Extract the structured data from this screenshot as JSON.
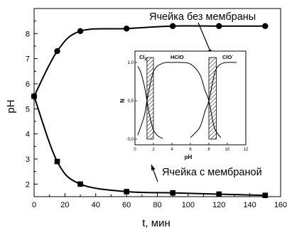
{
  "chart_data": [
    {
      "type": "line",
      "title": "",
      "xlabel": "t, мин",
      "ylabel": "pH",
      "xlim": [
        0,
        160
      ],
      "ylim": [
        1.5,
        9.0
      ],
      "x_ticks": [
        "0",
        "20",
        "40",
        "60",
        "80",
        "100",
        "120",
        "140",
        "160"
      ],
      "y_ticks": [
        "2",
        "3",
        "4",
        "5",
        "6",
        "7",
        "8"
      ],
      "grid": false,
      "series": [
        {
          "name": "Ячейка без мембраны",
          "marker": "circle",
          "x": [
            0,
            15,
            30,
            60,
            90,
            120,
            150
          ],
          "y": [
            5.5,
            7.3,
            8.1,
            8.2,
            8.3,
            8.3,
            8.3
          ]
        },
        {
          "name": "Ячейка с мембраной",
          "marker": "square",
          "x": [
            0,
            15,
            30,
            60,
            90,
            120,
            150
          ],
          "y": [
            5.5,
            2.9,
            2.0,
            1.7,
            1.65,
            1.6,
            1.55
          ]
        }
      ]
    },
    {
      "type": "line",
      "title": "",
      "xlabel": "pH",
      "ylabel": "N",
      "xlim": [
        0,
        12
      ],
      "ylim": [
        0,
        1.0
      ],
      "x_ticks": [
        "0",
        "2",
        "4",
        "6",
        "8",
        "10",
        "12"
      ],
      "y_ticks": [
        "0,0",
        "0,5",
        "1,0"
      ],
      "species_labels": [
        "Cl2",
        "HClO",
        "ClO-"
      ],
      "hatched_ph_ranges": [
        [
          1.3,
          2.0
        ],
        [
          8.0,
          8.8
        ]
      ],
      "series": [
        {
          "name": "Cl2",
          "x": [
            0.3,
            0.6,
            1.0,
            1.3,
            1.6,
            2.0,
            2.5,
            3.0
          ],
          "y": [
            0.95,
            0.88,
            0.7,
            0.5,
            0.3,
            0.12,
            0.04,
            0.01
          ]
        },
        {
          "name": "HClO",
          "x": [
            0.3,
            1.0,
            1.3,
            2.0,
            3.0,
            4.0,
            5.0,
            6.0,
            7.0,
            7.6,
            8.0,
            8.6,
            9.3
          ],
          "y": [
            0.05,
            0.3,
            0.5,
            0.88,
            0.99,
            1.0,
            1.0,
            0.98,
            0.85,
            0.63,
            0.5,
            0.15,
            0.02
          ]
        },
        {
          "name": "ClO-",
          "x": [
            6.0,
            7.0,
            7.6,
            8.0,
            8.6,
            9.0,
            9.5,
            10.0,
            11.0
          ],
          "y": [
            0.02,
            0.15,
            0.37,
            0.5,
            0.85,
            0.95,
            0.99,
            1.0,
            1.0
          ]
        }
      ]
    }
  ],
  "labels": {
    "series1": "Ячейка без мембраны",
    "series2": "Ячейка с мембраной",
    "ylabel": "pH",
    "xlabel": "t, мин",
    "inset_ylabel": "N",
    "inset_xlabel": "pH",
    "inset_cl2": "Cl",
    "inset_cl2_sub": "2",
    "inset_hclo": "HClO",
    "inset_clo": "ClO",
    "inset_clo_sup": "-"
  }
}
